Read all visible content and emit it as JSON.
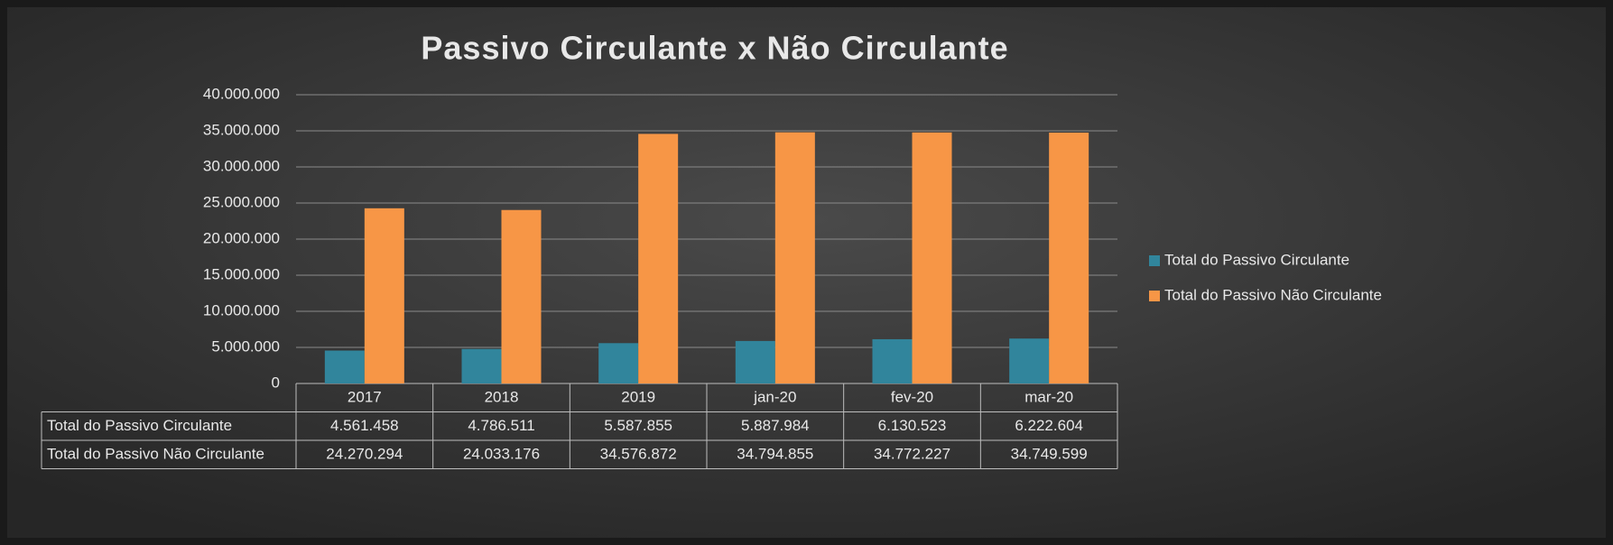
{
  "chart_data": {
    "type": "bar",
    "title": "Passivo Circulante x Não Circulante",
    "categories": [
      "2017",
      "2018",
      "2019",
      "jan-20",
      "fev-20",
      "mar-20"
    ],
    "series": [
      {
        "name": "Total do Passivo Circulante",
        "color": "#31859c",
        "values": [
          4561458,
          4786511,
          5587855,
          5887984,
          6130523,
          6222604
        ],
        "value_labels": [
          "4.561.458",
          "4.786.511",
          "5.587.855",
          "5.887.984",
          "6.130.523",
          "6.222.604"
        ]
      },
      {
        "name": "Total do Passivo Não Circulante",
        "color": "#f79646",
        "values": [
          24270294,
          24033176,
          34576872,
          34794855,
          34772227,
          34749599
        ],
        "value_labels": [
          "24.270.294",
          "24.033.176",
          "34.576.872",
          "34.794.855",
          "34.772.227",
          "34.749.599"
        ]
      }
    ],
    "ylim": [
      0,
      40000000
    ],
    "yticks": [
      0,
      {
        "value": 5000000,
        "label": "5.000.000"
      },
      {
        "value": 10000000,
        "label": "10.000.000"
      },
      {
        "value": 15000000,
        "label": "15.000.000"
      },
      {
        "value": 20000000,
        "label": "20.000.000"
      },
      {
        "value": 25000000,
        "label": "25.000.000"
      },
      {
        "value": 30000000,
        "label": "30.000.000"
      },
      {
        "value": 35000000,
        "label": "35.000.000"
      },
      {
        "value": 40000000,
        "label": "40.000.000"
      }
    ],
    "grid": true,
    "legend": "right"
  }
}
